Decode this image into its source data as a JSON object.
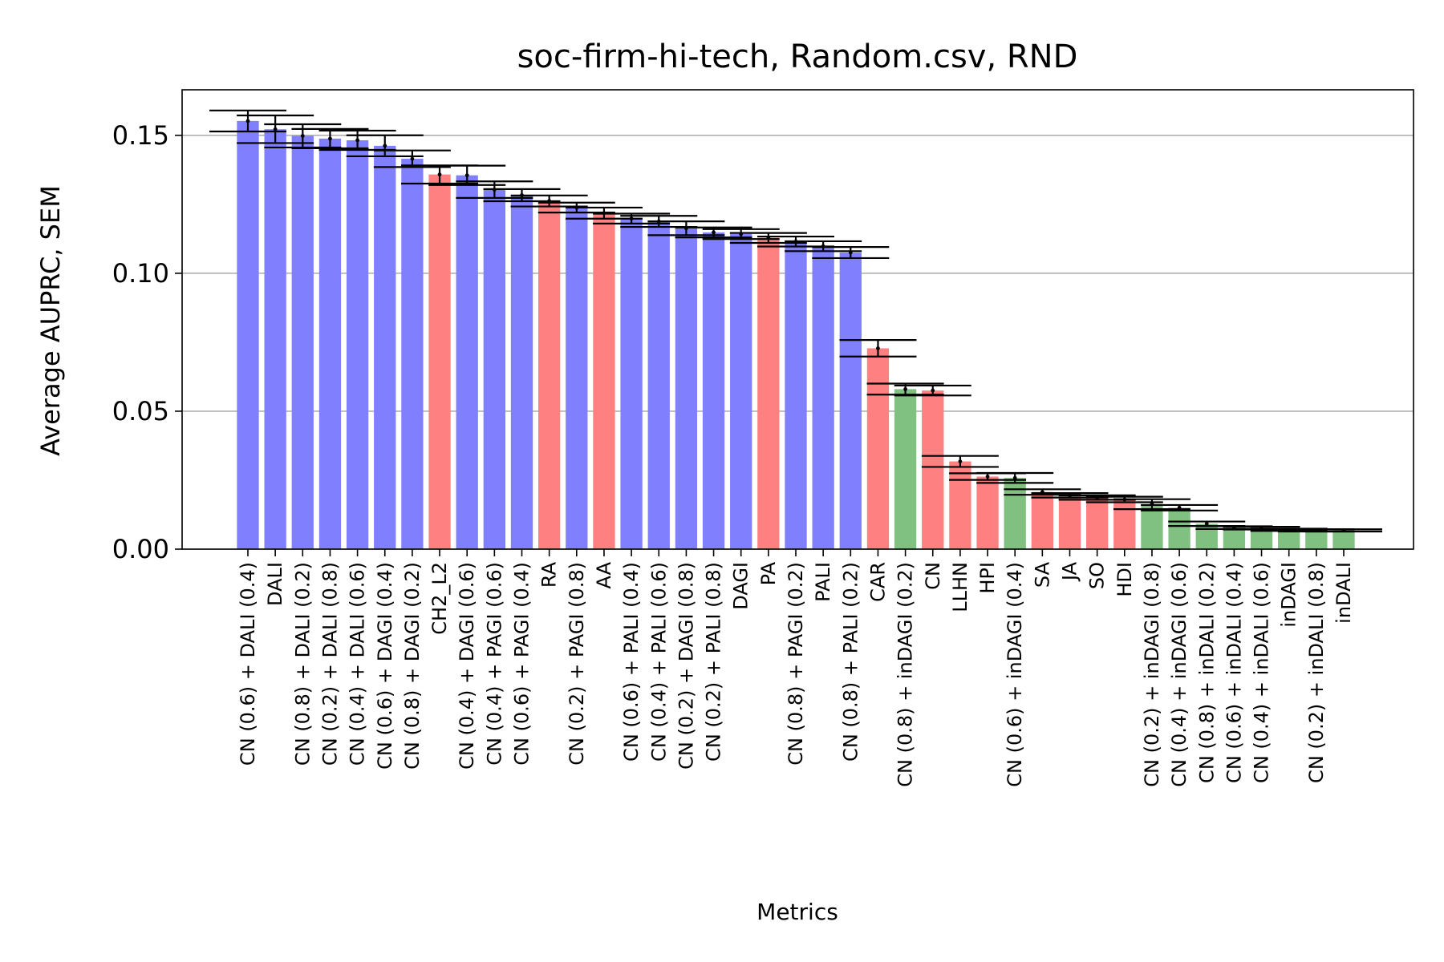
{
  "chart_data": {
    "type": "bar",
    "title": "soc-firm-hi-tech, Random.csv, RND",
    "xlabel": "Metrics",
    "ylabel": "Average AUPRC, SEM",
    "ylim": [
      0,
      0.1665
    ],
    "yticks": [
      "0.00",
      "0.05",
      "0.10",
      "0.15"
    ],
    "grid": "y",
    "colors": {
      "blue": "#8080ff",
      "red": "#ff8080",
      "green": "#80c080",
      "errorbar": "#000000",
      "grid": "#b0b0b0"
    },
    "categories": [
      "CN (0.6) + DALI (0.4)",
      "DALI",
      "CN (0.8) + DALI (0.2)",
      "CN (0.2) + DALI (0.8)",
      "CN (0.4) + DALI (0.6)",
      "CN (0.6) + DAGI (0.4)",
      "CN (0.8) + DAGI (0.2)",
      "CH2_L2",
      "CN (0.4) + DAGI (0.6)",
      "CN (0.4) + PAGI (0.6)",
      "CN (0.6) + PAGI (0.4)",
      "RA",
      "CN (0.2) + PAGI (0.8)",
      "AA",
      "CN (0.6) + PALI (0.4)",
      "CN (0.4) + PALI (0.6)",
      "CN (0.2) + DAGI (0.8)",
      "CN (0.2) + PALI (0.8)",
      "DAGI",
      "PA",
      "CN (0.8) + PAGI (0.2)",
      "PALI",
      "CN (0.8) + PALI (0.2)",
      "CAR",
      "CN (0.8) + inDAGI (0.2)",
      "CN",
      "LLHN",
      "HPI",
      "CN (0.6) + inDAGI (0.4)",
      "SA",
      "JA",
      "SO",
      "HDI",
      "CN (0.2) + inDAGI (0.8)",
      "CN (0.4) + inDAGI (0.6)",
      "CN (0.8) + inDALI (0.2)",
      "CN (0.6) + inDALI (0.4)",
      "CN (0.4) + inDALI (0.6)",
      "inDAGI",
      "CN (0.2) + inDALI (0.8)",
      "inDALI"
    ],
    "values": [
      0.1552,
      0.1522,
      0.1498,
      0.1488,
      0.1482,
      0.1462,
      0.1415,
      0.1358,
      0.1355,
      0.1303,
      0.1283,
      0.1262,
      0.1238,
      0.1218,
      0.1198,
      0.1188,
      0.1163,
      0.1148,
      0.1142,
      0.1128,
      0.1115,
      0.1098,
      0.1075,
      0.0728,
      0.058,
      0.0575,
      0.0318,
      0.0263,
      0.0258,
      0.0207,
      0.0195,
      0.0187,
      0.018,
      0.0163,
      0.015,
      0.0092,
      0.0078,
      0.0076,
      0.007,
      0.0068,
      0.0068
    ],
    "sem": [
      0.0038,
      0.005,
      0.0042,
      0.0035,
      0.0035,
      0.0038,
      0.003,
      0.0033,
      0.0035,
      0.003,
      0.0022,
      0.002,
      0.0018,
      0.002,
      0.0018,
      0.002,
      0.0025,
      0.0018,
      0.0018,
      0.0018,
      0.0018,
      0.0018,
      0.002,
      0.003,
      0.002,
      0.0018,
      0.002,
      0.0012,
      0.0018,
      0.001,
      0.0008,
      0.0008,
      0.001,
      0.0018,
      0.001,
      0.0008,
      0.0005,
      0.0005,
      0.0004,
      0.0004,
      0.0004
    ],
    "bar_colors": [
      "blue",
      "blue",
      "blue",
      "blue",
      "blue",
      "blue",
      "blue",
      "red",
      "blue",
      "blue",
      "blue",
      "red",
      "blue",
      "red",
      "blue",
      "blue",
      "blue",
      "blue",
      "blue",
      "red",
      "blue",
      "blue",
      "blue",
      "red",
      "green",
      "red",
      "red",
      "red",
      "green",
      "red",
      "red",
      "red",
      "red",
      "green",
      "green",
      "green",
      "green",
      "green",
      "green",
      "green",
      "green"
    ]
  }
}
